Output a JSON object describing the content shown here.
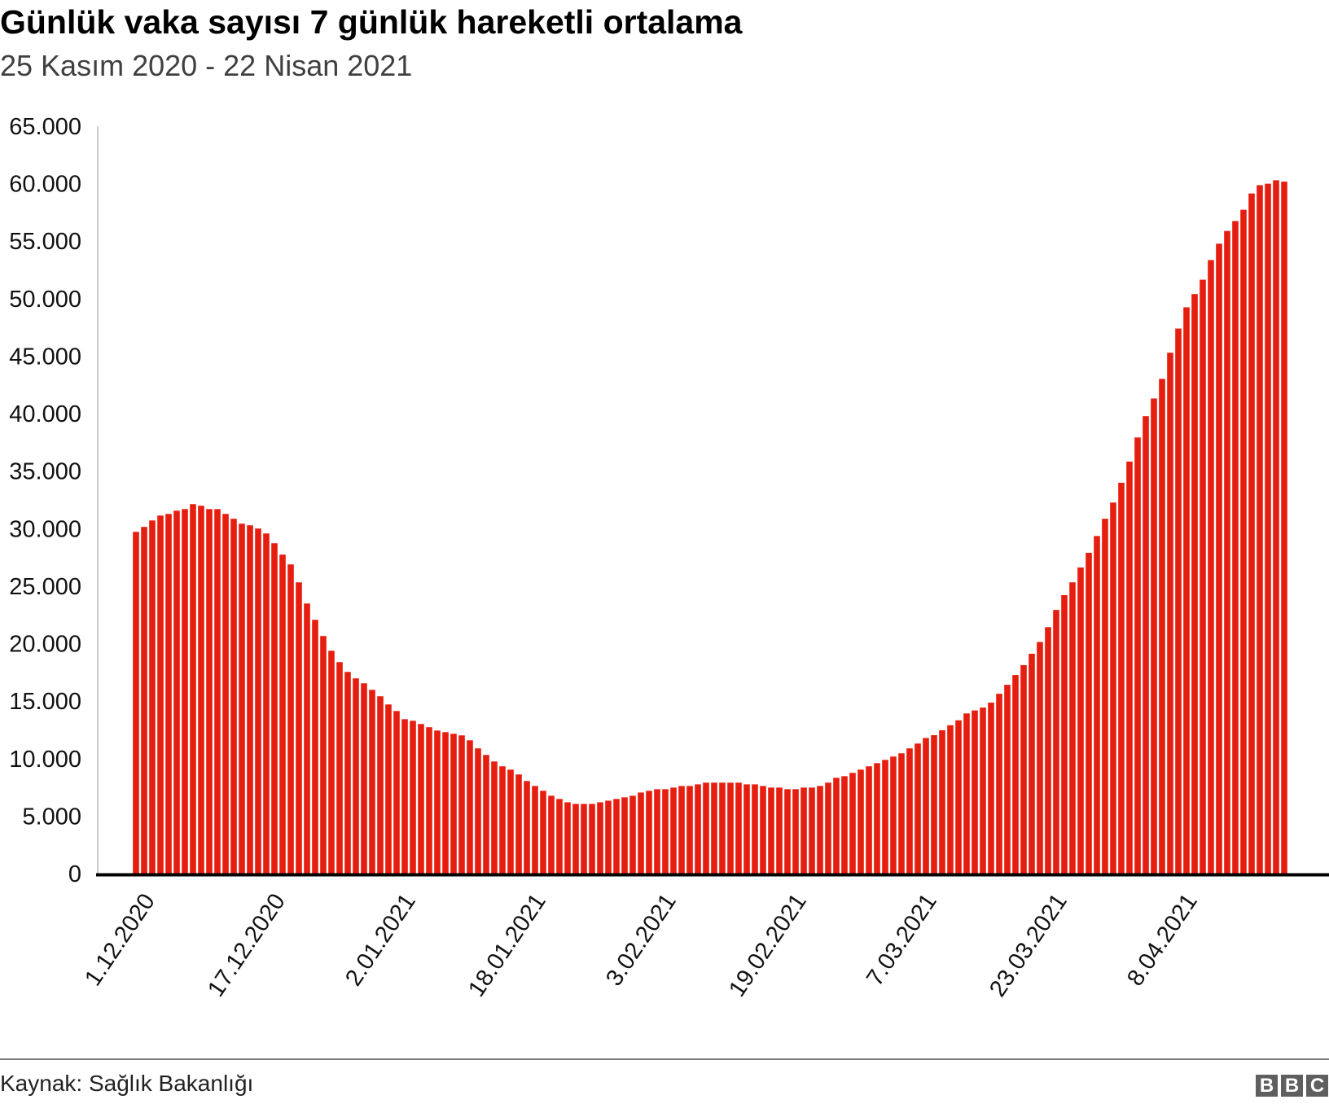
{
  "header": {
    "title": "Günlük vaka sayısı 7 günlük hareketli ortalama",
    "subtitle": "25 Kasım 2020 - 22 Nisan 2021"
  },
  "footer": {
    "source": "Kaynak: Sağlık Bakanlığı",
    "logo_letters": [
      "B",
      "B",
      "C"
    ]
  },
  "colors": {
    "bar": "#e61e10",
    "axis": "#000000",
    "y_axis_line": "#cccccc"
  },
  "chart_data": {
    "type": "bar",
    "title": "Günlük vaka sayısı 7 günlük hareketli ortalama",
    "subtitle": "25 Kasım 2020 - 22 Nisan 2021",
    "xlabel": "",
    "ylabel": "",
    "ylim": [
      0,
      65000
    ],
    "grid": false,
    "y_ticks": [
      0,
      5000,
      10000,
      15000,
      20000,
      25000,
      30000,
      35000,
      40000,
      45000,
      50000,
      55000,
      60000,
      65000
    ],
    "y_tick_labels": [
      "0",
      "5.000",
      "10.000",
      "15.000",
      "20.000",
      "25.000",
      "30.000",
      "35.000",
      "40.000",
      "45.000",
      "50.000",
      "55.000",
      "60.000",
      "65.000"
    ],
    "x_tick_labels": [
      {
        "index": 2,
        "label": "1.12.2020"
      },
      {
        "index": 18,
        "label": "17.12.2020"
      },
      {
        "index": 34,
        "label": "2.01.2021"
      },
      {
        "index": 50,
        "label": "18.01.2021"
      },
      {
        "index": 66,
        "label": "3.02.2021"
      },
      {
        "index": 82,
        "label": "19.02.2021"
      },
      {
        "index": 98,
        "label": "7.03.2021"
      },
      {
        "index": 114,
        "label": "23.03.2021"
      },
      {
        "index": 130,
        "label": "8.04.2021"
      }
    ],
    "values": [
      29720,
      30150,
      30710,
      31140,
      31280,
      31560,
      31700,
      32130,
      31990,
      31700,
      31700,
      31280,
      30860,
      30430,
      30290,
      30010,
      29580,
      28730,
      27740,
      26890,
      25330,
      23490,
      22070,
      20660,
      19380,
      18390,
      17540,
      16980,
      16550,
      15980,
      15420,
      14710,
      14140,
      13430,
      13290,
      13010,
      12730,
      12440,
      12300,
      12160,
      12020,
      11590,
      10890,
      10320,
      9750,
      9330,
      9040,
      8620,
      8050,
      7620,
      7200,
      6770,
      6490,
      6200,
      6060,
      6060,
      6060,
      6200,
      6340,
      6490,
      6630,
      6770,
      7050,
      7200,
      7340,
      7340,
      7480,
      7620,
      7620,
      7760,
      7910,
      7910,
      7910,
      7910,
      7910,
      7760,
      7760,
      7620,
      7480,
      7480,
      7340,
      7340,
      7480,
      7480,
      7620,
      7910,
      8330,
      8470,
      8760,
      9040,
      9330,
      9610,
      9890,
      10180,
      10460,
      10890,
      11310,
      11790,
      12040,
      12470,
      12900,
      13330,
      13930,
      14190,
      14440,
      14870,
      15640,
      16420,
      17270,
      18130,
      19120,
      20140,
      21430,
      22930,
      24220,
      25330,
      26620,
      27900,
      29360,
      30860,
      32270,
      33990,
      35830,
      37930,
      39780,
      41320,
      43030,
      45300,
      47400,
      49250,
      50400,
      51650,
      53360,
      54780,
      55890,
      56750,
      57730,
      59150,
      59870,
      60000,
      60300,
      60180
    ]
  }
}
